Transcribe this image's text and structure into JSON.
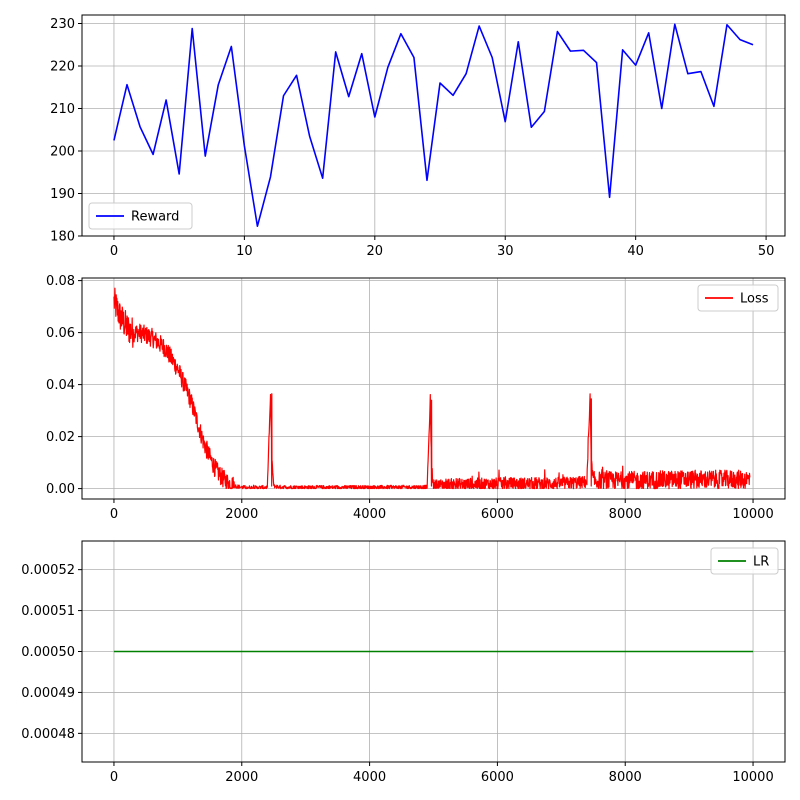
{
  "chart_data": [
    {
      "type": "line",
      "xlim": [
        -2.45,
        51.45
      ],
      "ylim": [
        180,
        232
      ],
      "xticks": [
        0,
        10,
        20,
        30,
        40,
        50
      ],
      "yticks": [
        180,
        190,
        200,
        210,
        220,
        230
      ],
      "grid": true,
      "legend_position": "lower-left",
      "series": [
        {
          "name": "Reward",
          "color": "#0000ff",
          "x": [
            0,
            1,
            2,
            3,
            4,
            5,
            6,
            7,
            8,
            9,
            10,
            11,
            12,
            13,
            14,
            15,
            16,
            17,
            18,
            19,
            20,
            21,
            22,
            23,
            24,
            25,
            26,
            27,
            28,
            29,
            30,
            31,
            32,
            33,
            34,
            35,
            36,
            37,
            38,
            39,
            40,
            41,
            42,
            43,
            44,
            45,
            46,
            47,
            48,
            49
          ],
          "y": [
            202.5,
            215.6,
            205.7,
            199.2,
            212.0,
            194.6,
            228.8,
            198.8,
            215.6,
            224.6,
            201.2,
            182.3,
            193.9,
            213.0,
            217.8,
            203.5,
            193.6,
            223.3,
            212.8,
            222.9,
            208.0,
            219.7,
            227.6,
            222.0,
            193.1,
            216.0,
            213.1,
            218.2,
            229.4,
            222.0,
            206.9,
            225.7,
            205.6,
            209.3,
            228.1,
            223.5,
            223.7,
            220.8,
            189.1,
            223.8,
            220.2,
            227.8,
            210.0,
            229.8,
            218.2,
            218.7,
            210.5,
            229.7,
            226.2,
            225.0
          ]
        }
      ]
    },
    {
      "type": "line",
      "xlim": [
        -500,
        10500
      ],
      "ylim": [
        -0.004,
        0.081
      ],
      "xticks": [
        0,
        2000,
        4000,
        6000,
        8000,
        10000
      ],
      "yticks": [
        0.0,
        0.02,
        0.04,
        0.06,
        0.08
      ],
      "ytick_labels": [
        "0.00",
        "0.02",
        "0.04",
        "0.06",
        "0.08"
      ],
      "grid": true,
      "legend_position": "upper-right",
      "noisy": true,
      "series": [
        {
          "name": "Loss",
          "color": "#ff0000",
          "x": [
            0,
            100,
            200,
            300,
            400,
            500,
            600,
            700,
            800,
            900,
            1000,
            1100,
            1200,
            1300,
            1400,
            1500,
            1600,
            1700,
            1800,
            1900,
            2000,
            2200,
            2400,
            2450,
            2470,
            2500,
            2600,
            3000,
            4000,
            4900,
            4950,
            4970,
            5000,
            5200,
            6000,
            7000,
            7400,
            7450,
            7470,
            7500,
            8000,
            9000,
            9950
          ],
          "y": [
            0.072,
            0.066,
            0.062,
            0.06,
            0.06,
            0.059,
            0.058,
            0.056,
            0.054,
            0.05,
            0.046,
            0.04,
            0.034,
            0.026,
            0.018,
            0.012,
            0.007,
            0.004,
            0.002,
            0.001,
            0.0005,
            0.0004,
            0.0005,
            0.036,
            0.012,
            0.001,
            0.0006,
            0.0005,
            0.0005,
            0.0006,
            0.034,
            0.008,
            0.001,
            0.0015,
            0.0018,
            0.002,
            0.0025,
            0.034,
            0.008,
            0.003,
            0.003,
            0.0035,
            0.0035
          ]
        }
      ],
      "spikes": [
        [
          2470,
          0.0365
        ],
        [
          4970,
          0.034
        ],
        [
          7470,
          0.0345
        ]
      ]
    },
    {
      "type": "line",
      "xlim": [
        -500,
        10500
      ],
      "ylim": [
        0.000473,
        0.000527
      ],
      "xticks": [
        0,
        2000,
        4000,
        6000,
        8000,
        10000
      ],
      "yticks": [
        0.00048,
        0.00049,
        0.0005,
        0.00051,
        0.00052
      ],
      "ytick_labels": [
        "0.00048",
        "0.00049",
        "0.00050",
        "0.00051",
        "0.00052"
      ],
      "grid": true,
      "legend_position": "upper-right",
      "series": [
        {
          "name": "LR",
          "color": "#008000",
          "x": [
            0,
            10000
          ],
          "y": [
            0.0005,
            0.0005
          ]
        }
      ]
    }
  ]
}
